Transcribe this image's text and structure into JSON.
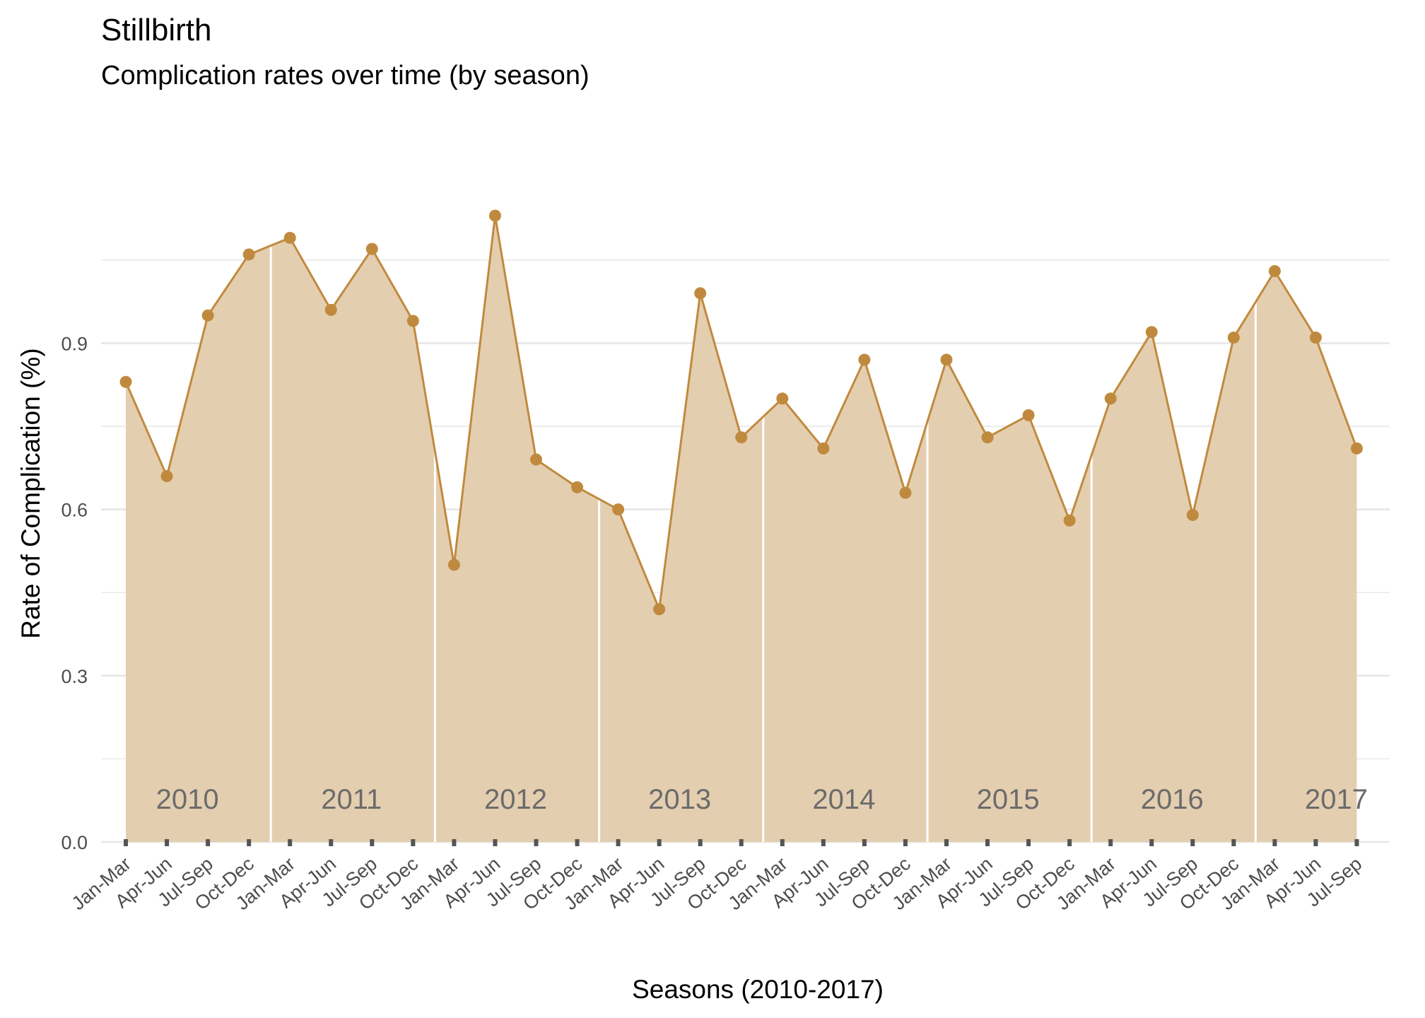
{
  "chart_data": {
    "type": "area",
    "title": "Stillbirth",
    "subtitle": "Complication rates over time (by season)",
    "xlabel": "Seasons (2010-2017)",
    "ylabel": "Rate of Complication (%)",
    "ylim": [
      0,
      1.15
    ],
    "yticks": [
      0.0,
      0.3,
      0.6,
      0.9
    ],
    "ytick_labels": [
      "0.0",
      "0.3",
      "0.6",
      "0.9"
    ],
    "grid": true,
    "legend": "none",
    "colors": {
      "line": "#c08a3e",
      "fill": "#e4ceb0",
      "separator": "#ffffff",
      "grid": "#e6e6e6",
      "year_label": "#6b6b6b",
      "tick_mark": "#555555"
    },
    "years": [
      "2010",
      "2011",
      "2012",
      "2013",
      "2014",
      "2015",
      "2016",
      "2017"
    ],
    "categories": [
      "Jan-Mar",
      "Apr-Jun",
      "Jul-Sep",
      "Oct-Dec",
      "Jan-Mar",
      "Apr-Jun",
      "Jul-Sep",
      "Oct-Dec",
      "Jan-Mar",
      "Apr-Jun",
      "Jul-Sep",
      "Oct-Dec",
      "Jan-Mar",
      "Apr-Jun",
      "Jul-Sep",
      "Oct-Dec",
      "Jan-Mar",
      "Apr-Jun",
      "Jul-Sep",
      "Oct-Dec",
      "Jan-Mar",
      "Apr-Jun",
      "Jul-Sep",
      "Oct-Dec",
      "Jan-Mar",
      "Apr-Jun",
      "Jul-Sep",
      "Oct-Dec",
      "Jan-Mar",
      "Apr-Jun",
      "Jul-Sep"
    ],
    "series": [
      {
        "values": [
          0.83,
          0.66,
          0.95,
          1.06,
          1.09,
          0.96,
          1.07,
          0.94,
          0.5,
          1.13,
          0.69,
          0.64,
          0.6,
          0.42,
          0.99,
          0.73,
          0.8,
          0.71,
          0.87,
          0.63,
          0.87,
          0.73,
          0.77,
          0.58,
          0.8,
          0.92,
          0.59,
          0.91,
          1.03,
          0.91,
          0.71
        ]
      }
    ]
  }
}
